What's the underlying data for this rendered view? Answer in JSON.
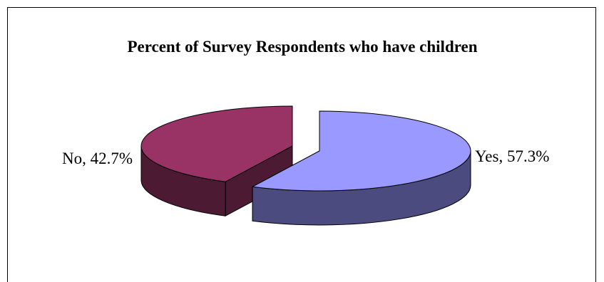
{
  "chart_data": {
    "type": "pie",
    "title": "Percent of Survey Respondents who have children",
    "categories": [
      "Yes",
      "No"
    ],
    "values": [
      57.3,
      42.7
    ],
    "labels": [
      "Yes, 57.3%",
      "No, 42.7%"
    ],
    "colors": {
      "Yes": {
        "top": "#9999ff",
        "side": "#4b4b7f"
      },
      "No": {
        "top": "#993366",
        "side": "#4c1a33"
      }
    },
    "style": "3d-exploded",
    "legend": "none"
  }
}
